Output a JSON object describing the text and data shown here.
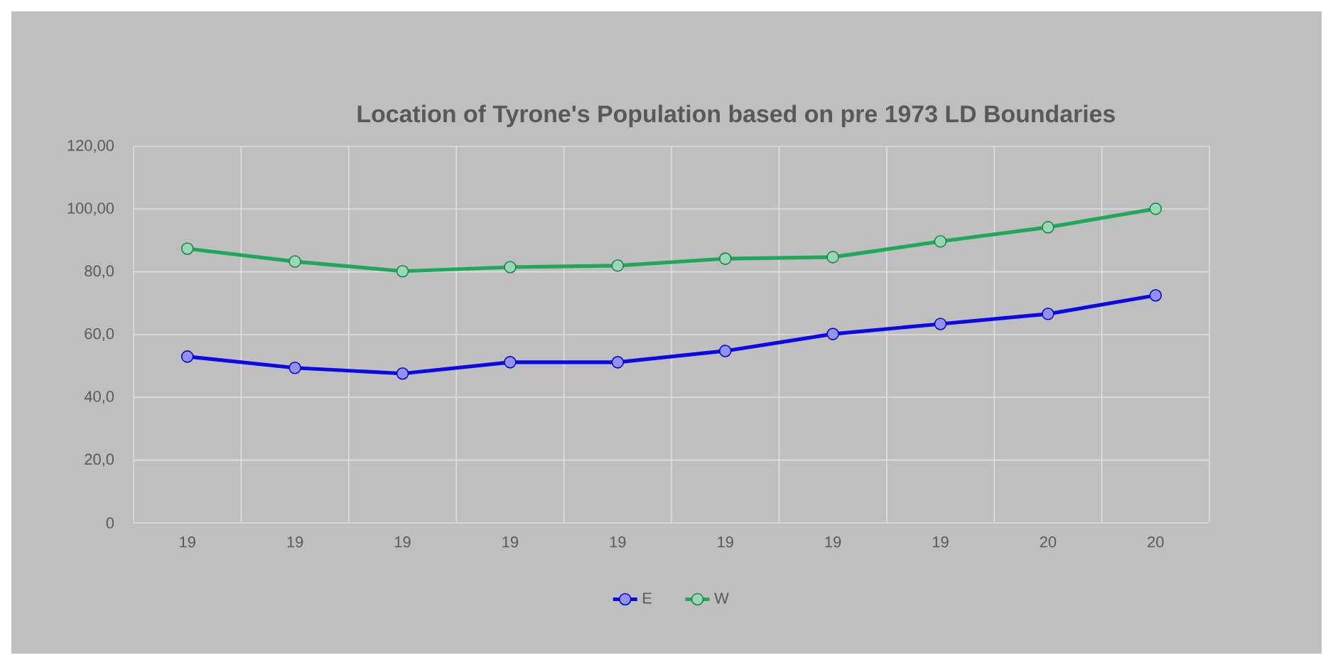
{
  "chart_data": {
    "type": "line",
    "title": "Location of Tyrone's Population based on pre 1973 LD Boundaries",
    "categories": [
      "19",
      "19",
      "19",
      "19",
      "19",
      "19",
      "19",
      "19",
      "20",
      "20"
    ],
    "series": [
      {
        "name": "E",
        "color": "#0a0ae6",
        "values": [
          53.0,
          49.4,
          47.6,
          51.2,
          51.2,
          54.8,
          60.2,
          63.4,
          66.6,
          72.5
        ]
      },
      {
        "name": "W",
        "color": "#1fa85a",
        "values": [
          87.4,
          83.3,
          80.2,
          81.5,
          82.0,
          84.2,
          84.7,
          89.7,
          94.2,
          100.1
        ]
      }
    ],
    "ylim": [
      0,
      120
    ],
    "yticks": [
      0,
      {
        "value": 20,
        "label": "20,0"
      },
      {
        "value": 40,
        "label": "40,0"
      },
      {
        "value": 60,
        "label": "60,0"
      },
      {
        "value": 80,
        "label": "80,0"
      },
      {
        "value": 100,
        "label": "100,00"
      },
      {
        "value": 120,
        "label": "120,00"
      }
    ],
    "grid": true,
    "legend": "bottom",
    "marker": "circle",
    "line_style": "solid"
  }
}
